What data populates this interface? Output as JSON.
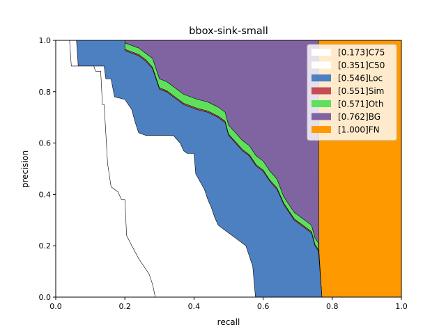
{
  "chart_data": {
    "type": "area",
    "title": "bbox-sink-small",
    "xlabel": "recall",
    "ylabel": "precision",
    "xlim": [
      0,
      1
    ],
    "ylim": [
      0,
      1
    ],
    "xticks": [
      "0.0",
      "0.2",
      "0.4",
      "0.6",
      "0.8",
      "1.0"
    ],
    "yticks": [
      "0.0",
      "0.2",
      "0.4",
      "0.6",
      "0.8",
      "1.0"
    ],
    "grid": false,
    "legend_position": "top-right",
    "series": [
      {
        "name": "[0.173]C75",
        "color": "#ffffff",
        "points": [
          [
            0,
            1
          ],
          [
            0.04,
            1
          ],
          [
            0.045,
            0.9
          ],
          [
            0.11,
            0.9
          ],
          [
            0.115,
            0.88
          ],
          [
            0.13,
            0.88
          ],
          [
            0.135,
            0.75
          ],
          [
            0.14,
            0.75
          ],
          [
            0.15,
            0.52
          ],
          [
            0.16,
            0.43
          ],
          [
            0.18,
            0.41
          ],
          [
            0.19,
            0.38
          ],
          [
            0.2,
            0.38
          ],
          [
            0.205,
            0.24
          ],
          [
            0.22,
            0.2
          ],
          [
            0.24,
            0.15
          ],
          [
            0.27,
            0.09
          ],
          [
            0.28,
            0.05
          ],
          [
            0.288,
            0
          ]
        ]
      },
      {
        "name": "[0.351]C50",
        "color": "#ffffff",
        "points": [
          [
            0,
            1
          ],
          [
            0.06,
            1
          ],
          [
            0.065,
            0.9
          ],
          [
            0.14,
            0.9
          ],
          [
            0.145,
            0.85
          ],
          [
            0.16,
            0.85
          ],
          [
            0.17,
            0.78
          ],
          [
            0.2,
            0.77
          ],
          [
            0.22,
            0.73
          ],
          [
            0.23,
            0.68
          ],
          [
            0.24,
            0.64
          ],
          [
            0.26,
            0.63
          ],
          [
            0.34,
            0.63
          ],
          [
            0.36,
            0.6
          ],
          [
            0.37,
            0.57
          ],
          [
            0.38,
            0.56
          ],
          [
            0.4,
            0.56
          ],
          [
            0.405,
            0.48
          ],
          [
            0.43,
            0.42
          ],
          [
            0.44,
            0.38
          ],
          [
            0.45,
            0.35
          ],
          [
            0.46,
            0.31
          ],
          [
            0.47,
            0.28
          ],
          [
            0.5,
            0.25
          ],
          [
            0.53,
            0.22
          ],
          [
            0.55,
            0.2
          ],
          [
            0.56,
            0.16
          ],
          [
            0.57,
            0.12
          ],
          [
            0.575,
            0.04
          ],
          [
            0.578,
            0
          ]
        ]
      },
      {
        "name": "[0.546]Loc",
        "color": "#4c80c0",
        "points": [
          [
            0,
            1
          ],
          [
            0.2,
            1
          ],
          [
            0.2,
            0.96
          ],
          [
            0.24,
            0.94
          ],
          [
            0.26,
            0.92
          ],
          [
            0.28,
            0.89
          ],
          [
            0.3,
            0.81
          ],
          [
            0.32,
            0.8
          ],
          [
            0.34,
            0.78
          ],
          [
            0.37,
            0.75
          ],
          [
            0.41,
            0.73
          ],
          [
            0.44,
            0.72
          ],
          [
            0.47,
            0.7
          ],
          [
            0.49,
            0.68
          ],
          [
            0.5,
            0.63
          ],
          [
            0.52,
            0.6
          ],
          [
            0.54,
            0.57
          ],
          [
            0.56,
            0.55
          ],
          [
            0.57,
            0.53
          ],
          [
            0.58,
            0.51
          ],
          [
            0.6,
            0.49
          ],
          [
            0.62,
            0.45
          ],
          [
            0.64,
            0.42
          ],
          [
            0.66,
            0.36
          ],
          [
            0.69,
            0.3
          ],
          [
            0.72,
            0.27
          ],
          [
            0.74,
            0.25
          ],
          [
            0.75,
            0.2
          ],
          [
            0.76,
            0.18
          ],
          [
            0.77,
            0
          ]
        ]
      },
      {
        "name": "[0.551]Sim",
        "color": "#c44e52",
        "points": [
          [
            0,
            1
          ],
          [
            0.2,
            1
          ],
          [
            0.2,
            0.965
          ],
          [
            0.24,
            0.945
          ],
          [
            0.26,
            0.925
          ],
          [
            0.28,
            0.895
          ],
          [
            0.3,
            0.815
          ],
          [
            0.32,
            0.805
          ],
          [
            0.34,
            0.785
          ],
          [
            0.37,
            0.755
          ],
          [
            0.41,
            0.735
          ],
          [
            0.44,
            0.725
          ],
          [
            0.47,
            0.705
          ],
          [
            0.49,
            0.685
          ],
          [
            0.5,
            0.635
          ],
          [
            0.52,
            0.605
          ],
          [
            0.54,
            0.575
          ],
          [
            0.56,
            0.555
          ],
          [
            0.57,
            0.535
          ],
          [
            0.58,
            0.515
          ],
          [
            0.6,
            0.495
          ],
          [
            0.62,
            0.455
          ],
          [
            0.64,
            0.425
          ],
          [
            0.66,
            0.365
          ],
          [
            0.69,
            0.305
          ],
          [
            0.72,
            0.275
          ],
          [
            0.74,
            0.255
          ],
          [
            0.75,
            0.205
          ],
          [
            0.76,
            0.185
          ],
          [
            0.77,
            0
          ]
        ]
      },
      {
        "name": "[0.571]Oth",
        "color": "#5de15d",
        "points": [
          [
            0,
            1
          ],
          [
            0.2,
            1
          ],
          [
            0.2,
            0.99
          ],
          [
            0.24,
            0.97
          ],
          [
            0.26,
            0.95
          ],
          [
            0.28,
            0.93
          ],
          [
            0.3,
            0.85
          ],
          [
            0.32,
            0.84
          ],
          [
            0.34,
            0.82
          ],
          [
            0.37,
            0.79
          ],
          [
            0.41,
            0.77
          ],
          [
            0.44,
            0.76
          ],
          [
            0.47,
            0.74
          ],
          [
            0.49,
            0.72
          ],
          [
            0.5,
            0.67
          ],
          [
            0.52,
            0.64
          ],
          [
            0.54,
            0.61
          ],
          [
            0.56,
            0.59
          ],
          [
            0.57,
            0.57
          ],
          [
            0.58,
            0.55
          ],
          [
            0.6,
            0.53
          ],
          [
            0.62,
            0.49
          ],
          [
            0.64,
            0.46
          ],
          [
            0.66,
            0.39
          ],
          [
            0.69,
            0.33
          ],
          [
            0.72,
            0.3
          ],
          [
            0.74,
            0.28
          ],
          [
            0.75,
            0.23
          ],
          [
            0.76,
            0.21
          ],
          [
            0.77,
            0
          ]
        ]
      },
      {
        "name": "[0.762]BG",
        "color": "#8064a2",
        "points": [
          [
            0,
            1
          ],
          [
            0.76,
            1
          ],
          [
            0.762,
            0
          ]
        ]
      },
      {
        "name": "[1.000]FN",
        "color": "#ff9900",
        "points": [
          [
            0,
            1
          ],
          [
            1,
            1
          ],
          [
            1,
            0
          ]
        ]
      }
    ]
  }
}
